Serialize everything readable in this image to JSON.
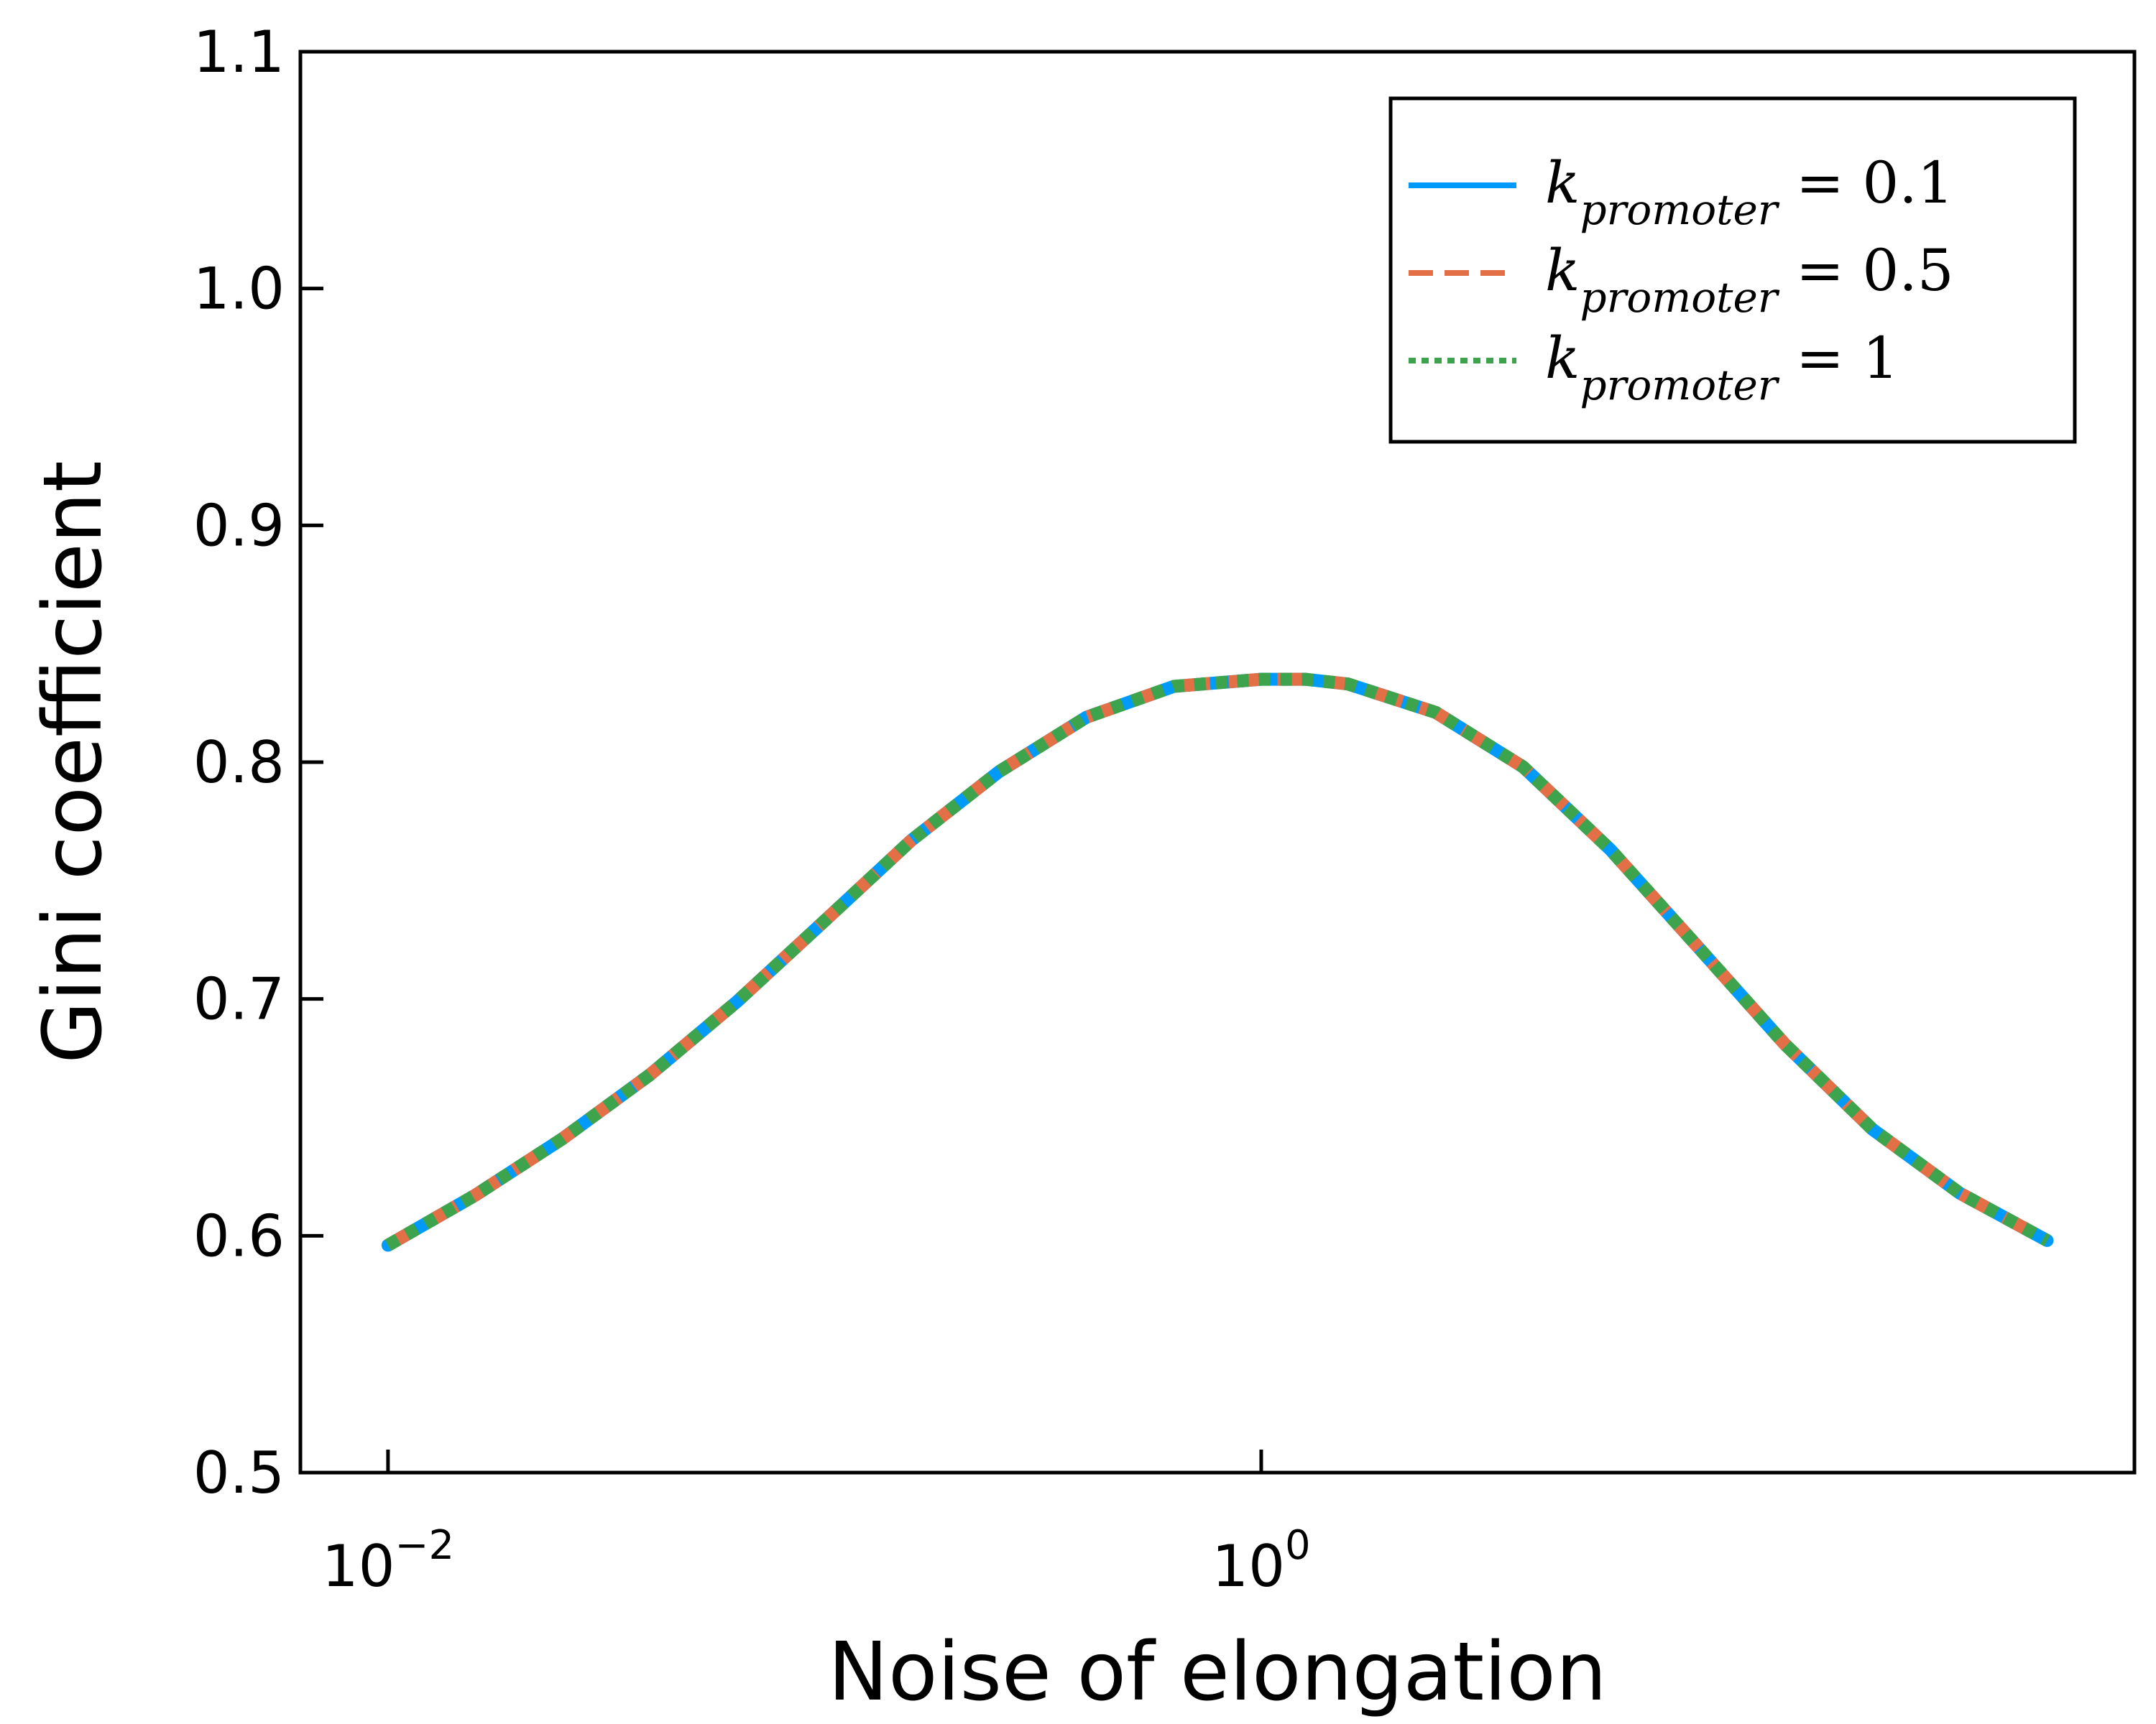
{
  "chart_data": {
    "type": "line",
    "title": "",
    "xlabel": "Noise of elongation",
    "ylabel": "Gini coefficient",
    "xscale": "log",
    "xlim": [
      0.0063,
      100
    ],
    "ylim": [
      0.5,
      1.1
    ],
    "xticks": [
      {
        "value": 0.01,
        "base": "10",
        "exp": "−2"
      },
      {
        "value": 1,
        "base": "10",
        "exp": "0"
      }
    ],
    "yticks": [
      "0.5",
      "0.6",
      "0.7",
      "0.8",
      "0.9",
      "1.0",
      "1.1"
    ],
    "legend_position": "top-right",
    "grid": false,
    "x": [
      0.01,
      0.0158,
      0.0251,
      0.0398,
      0.0631,
      0.1,
      0.158,
      0.251,
      0.398,
      0.631,
      1.0,
      1.26,
      1.58,
      2.51,
      3.98,
      6.31,
      10,
      15.8,
      25.1,
      39.8,
      63.1
    ],
    "series": [
      {
        "name_main": "k",
        "name_sub": "promoter",
        "name_eq": " = 0.1",
        "color": "#009AFA",
        "dash": "solid",
        "values": [
          0.596,
          0.617,
          0.641,
          0.668,
          0.699,
          0.733,
          0.767,
          0.796,
          0.819,
          0.832,
          0.835,
          0.835,
          0.833,
          0.821,
          0.798,
          0.763,
          0.722,
          0.681,
          0.645,
          0.618,
          0.598
        ]
      },
      {
        "name_main": "k",
        "name_sub": "promoter",
        "name_eq": " = 0.5",
        "color": "#E26F46",
        "dash": "dashed",
        "values": [
          0.596,
          0.617,
          0.641,
          0.668,
          0.699,
          0.733,
          0.767,
          0.796,
          0.819,
          0.832,
          0.835,
          0.835,
          0.833,
          0.821,
          0.798,
          0.763,
          0.722,
          0.681,
          0.645,
          0.618,
          0.598
        ]
      },
      {
        "name_main": "k",
        "name_sub": "promoter",
        "name_eq": " = 1",
        "color": "#3DA44D",
        "dash": "dotted",
        "values": [
          0.596,
          0.617,
          0.641,
          0.668,
          0.699,
          0.733,
          0.767,
          0.796,
          0.819,
          0.832,
          0.835,
          0.835,
          0.833,
          0.821,
          0.798,
          0.763,
          0.722,
          0.681,
          0.645,
          0.618,
          0.598
        ]
      }
    ]
  }
}
